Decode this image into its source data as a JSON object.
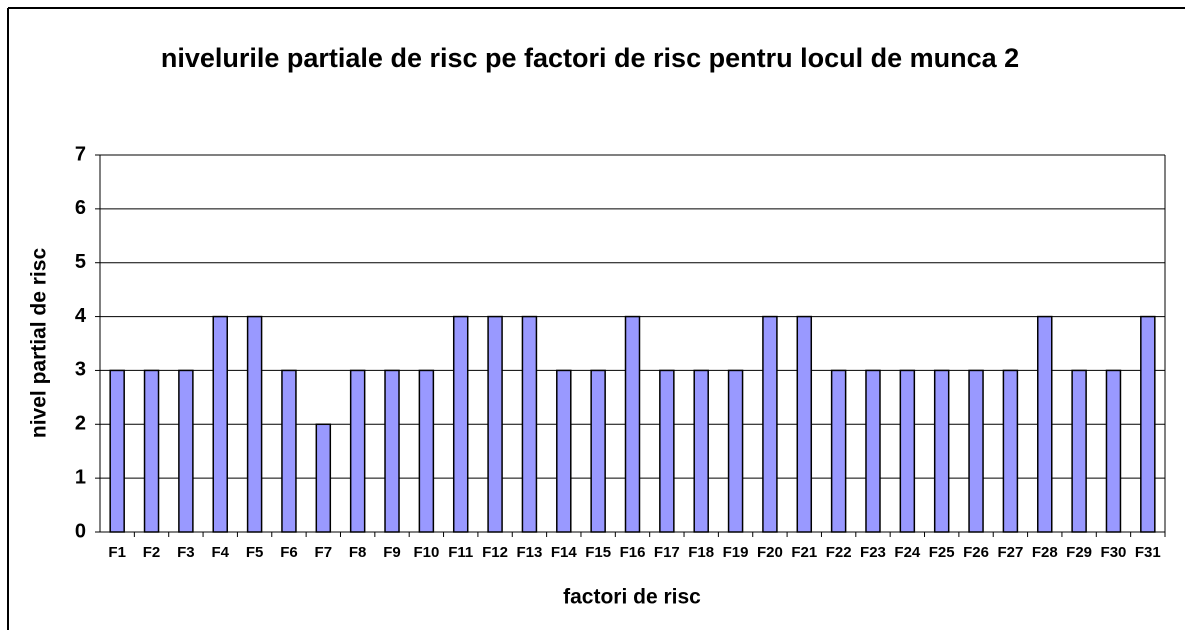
{
  "chart_data": {
    "type": "bar",
    "title": "nivelurile partiale de risc pe factori de risc pentru locul de munca 2",
    "x_label": "factori de risc",
    "y_label": "nivel partial de risc",
    "categories": [
      "F1",
      "F2",
      "F3",
      "F4",
      "F5",
      "F6",
      "F7",
      "F8",
      "F9",
      "F10",
      "F11",
      "F12",
      "F13",
      "F14",
      "F15",
      "F16",
      "F17",
      "F18",
      "F19",
      "F20",
      "F21",
      "F22",
      "F23",
      "F24",
      "F25",
      "F26",
      "F27",
      "F28",
      "F29",
      "F30",
      "F31"
    ],
    "values": [
      3,
      3,
      3,
      4,
      4,
      3,
      2,
      3,
      3,
      3,
      4,
      4,
      4,
      3,
      3,
      4,
      3,
      3,
      3,
      4,
      4,
      3,
      3,
      3,
      3,
      3,
      3,
      4,
      3,
      3,
      4
    ],
    "color": "#9999ff",
    "ylim": [
      0,
      7
    ],
    "yticks": [
      0,
      1,
      2,
      3,
      4,
      5,
      6,
      7
    ],
    "grid": true
  }
}
